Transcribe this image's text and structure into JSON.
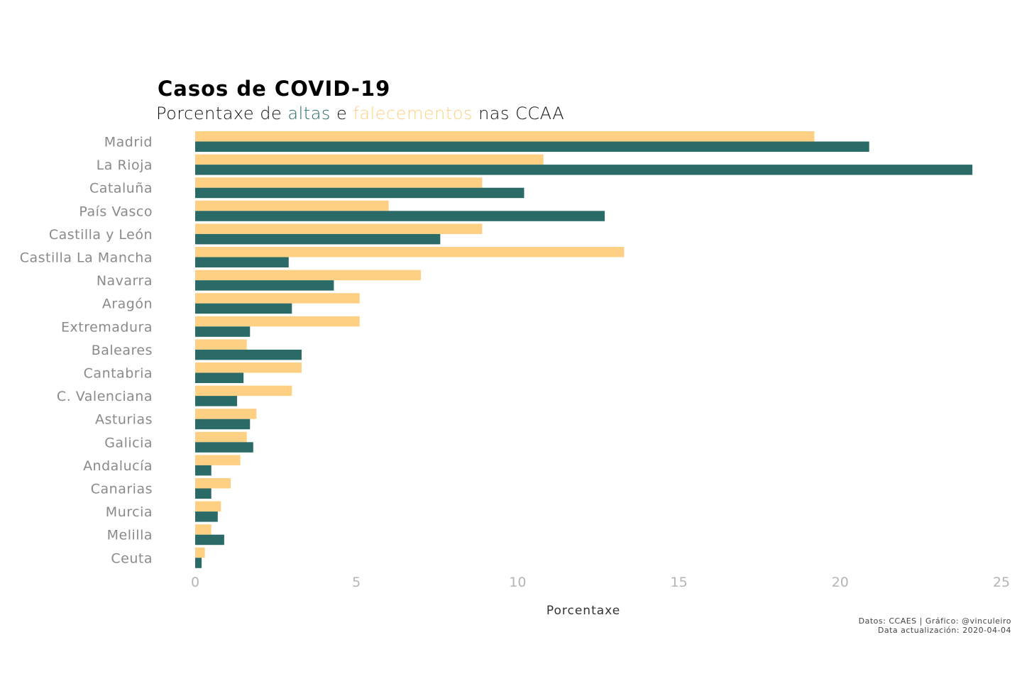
{
  "colors": {
    "altas": "#2a6b68",
    "falecementos": "#fdd083"
  },
  "chart_data": {
    "type": "bar",
    "orientation": "horizontal",
    "title": "Casos de COVID-19",
    "subtitle_parts": [
      "Porcentaxe de ",
      "altas",
      " e ",
      "falecementos",
      " nas CCAA"
    ],
    "xlabel": "Porcentaxe",
    "ylabel": "",
    "xlim": [
      0,
      25
    ],
    "xticks": [
      0,
      5,
      10,
      15,
      20,
      25
    ],
    "grid": false,
    "legend": "none",
    "categories": [
      "Madrid",
      "La Rioja",
      "Cataluña",
      "País Vasco",
      "Castilla y León",
      "Castilla La Mancha",
      "Navarra",
      "Aragón",
      "Extremadura",
      "Baleares",
      "Cantabria",
      "C. Valenciana",
      "Asturias",
      "Galicia",
      "Andalucía",
      "Canarias",
      "Murcia",
      "Melilla",
      "Ceuta"
    ],
    "series": [
      {
        "name": "falecementos",
        "values": [
          19.2,
          10.8,
          8.9,
          6.0,
          8.9,
          13.3,
          7.0,
          5.1,
          5.1,
          1.6,
          3.3,
          3.0,
          1.9,
          1.6,
          1.4,
          1.1,
          0.8,
          0.5,
          0.3
        ]
      },
      {
        "name": "altas",
        "values": [
          20.9,
          24.1,
          10.2,
          12.7,
          7.6,
          2.9,
          4.3,
          3.0,
          1.7,
          3.3,
          1.5,
          1.3,
          1.7,
          1.8,
          0.5,
          0.5,
          0.7,
          0.9,
          0.2
        ]
      }
    ],
    "caption": [
      "Datos: CCAES | Gráfico: @vinculeiro",
      "Data actualización: 2020-04-04"
    ]
  }
}
